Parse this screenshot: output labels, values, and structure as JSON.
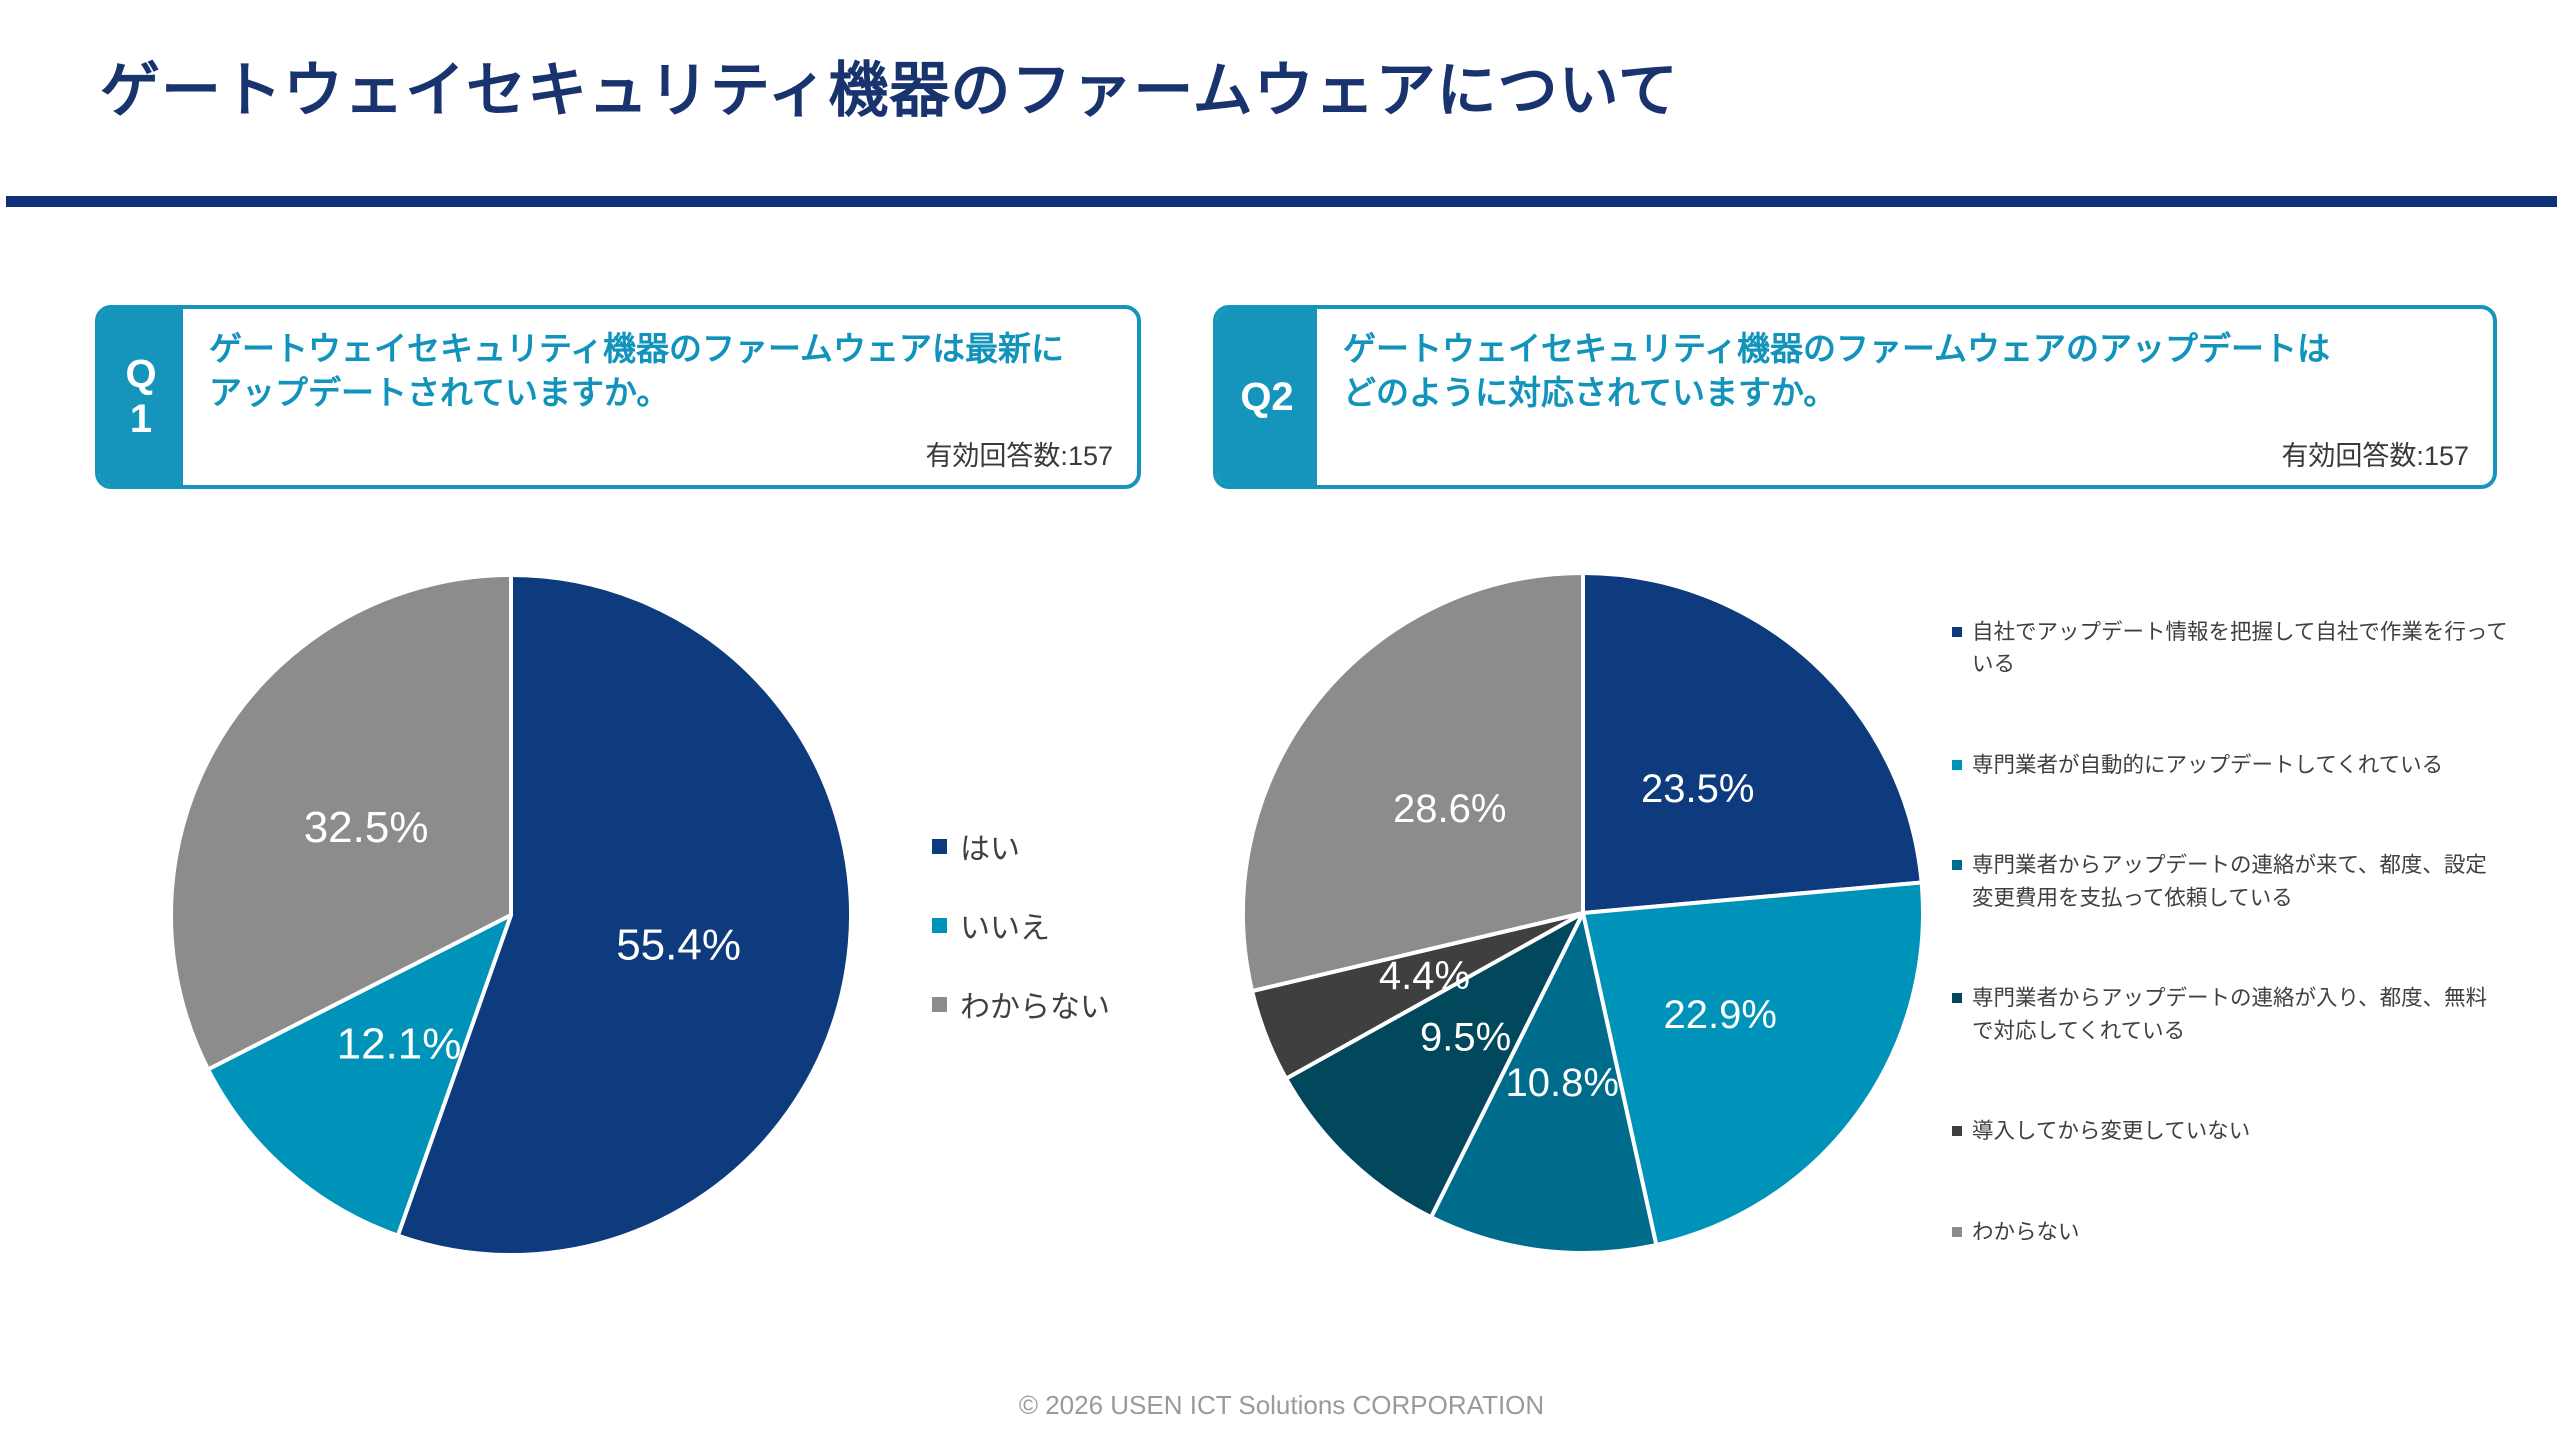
{
  "slide": {
    "title": "ゲートウェイセキュリティ機器のファームウェアについて",
    "footer": "© 2026 USEN ICT Solutions CORPORATION"
  },
  "colors": {
    "title_navy": "#19336f",
    "rule_navy": "#0d3076",
    "accent_teal": "#1695bc",
    "question_teal": "#1193bb",
    "pie_navy": "#0e3a7e",
    "pie_teal": "#0093ba",
    "pie_teal_dark": "#006c8b",
    "pie_teal_darker": "#02485c",
    "pie_charcoal": "#3f3f3f",
    "pie_gray": "#8c8c8c",
    "legend_text": "#404040",
    "footer_gray": "#9a9a9a"
  },
  "q1": {
    "tag": "Q\n1",
    "question": "ゲートウェイセキュリティ機器のファームウェアは最新に\nアップデートされていますか。",
    "respondents": "有効回答数:157"
  },
  "q2": {
    "tag": "Q2",
    "question": "ゲートウェイセキュリティ機器のファームウェアのアップデートは\nどのように対応されていますか。",
    "respondents": "有効回答数:157"
  },
  "chart_data": [
    {
      "type": "pie",
      "name": "q1-firmware-up-to-date",
      "title": "ゲートウェイセキュリティ機器のファームウェアは最新にアップデートされていますか。",
      "valid_responses": 157,
      "start_angle_deg": 0,
      "direction": "clockwise",
      "legend_position": "right",
      "value_suffix": "%",
      "label_radius_frac": 0.5,
      "label_font_px": 44,
      "slices": [
        {
          "label": "はい",
          "value": 55.4,
          "color": "#0e3a7e"
        },
        {
          "label": "いいえ",
          "value": 12.1,
          "color": "#0093ba"
        },
        {
          "label": "わからない",
          "value": 32.5,
          "color": "#8c8c8c"
        }
      ]
    },
    {
      "type": "pie",
      "name": "q2-firmware-update-method",
      "title": "ゲートウェイセキュリティ機器のファームウェアのアップデートはどのように対応されていますか。",
      "valid_responses": 157,
      "start_angle_deg": 0,
      "direction": "clockwise",
      "legend_position": "right",
      "value_suffix": "%",
      "label_radius_frac": 0.5,
      "label_font_px": 40,
      "slices": [
        {
          "label": "自社でアップデート情報を把握して自社で作業を行っている",
          "value": 23.5,
          "color": "#0e3a7e"
        },
        {
          "label": "専門業者が自動的にアップデートしてくれている",
          "value": 22.9,
          "color": "#0093ba"
        },
        {
          "label": "専門業者からアップデートの連絡が来て、都度、設定変更費用を支払って依頼している",
          "value": 10.8,
          "color": "#006c8b"
        },
        {
          "label": "専門業者からアップデートの連絡が入り、都度、無料で対応してくれている",
          "value": 9.5,
          "color": "#02485c"
        },
        {
          "label": "導入してから変更していない",
          "value": 4.4,
          "color": "#3f3f3f"
        },
        {
          "label": "わからない",
          "value": 28.6,
          "color": "#8c8c8c"
        }
      ]
    }
  ]
}
